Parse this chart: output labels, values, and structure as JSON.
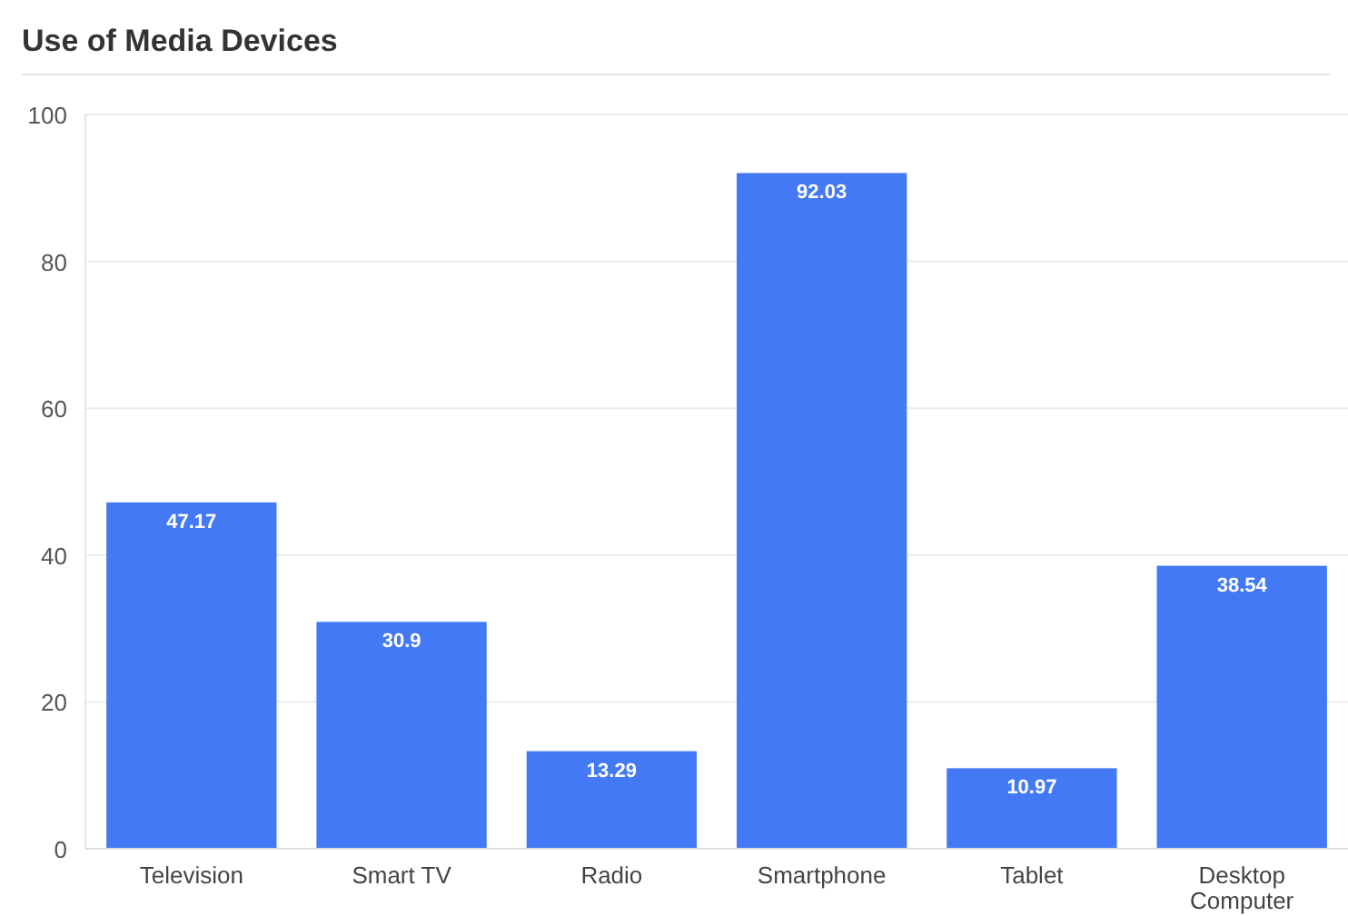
{
  "chart_data": {
    "type": "bar",
    "title": "Use of Media Devices",
    "categories": [
      "Television",
      "Smart TV",
      "Radio",
      "Smartphone",
      "Tablet",
      "Desktop Computer"
    ],
    "values": [
      47.17,
      30.9,
      13.29,
      92.03,
      10.97,
      38.54
    ],
    "color": "#4479f5",
    "ylim": [
      0,
      100
    ],
    "yticks": [
      0,
      20,
      40,
      60,
      80,
      100
    ],
    "grid": true,
    "data_labels": true
  }
}
